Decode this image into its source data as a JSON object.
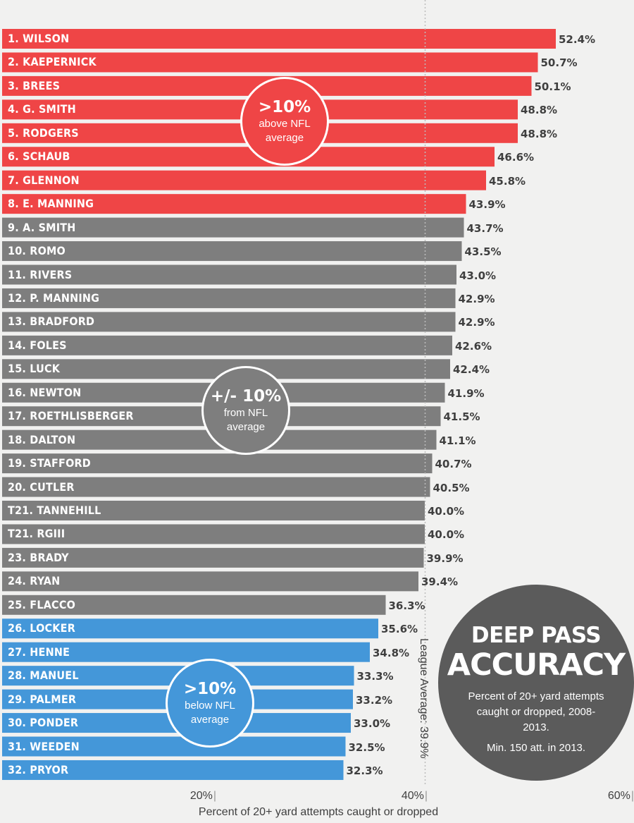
{
  "chart_data": {
    "type": "bar",
    "orientation": "horizontal",
    "categories": [
      "1. WILSON",
      "2. KAEPERNICK",
      "3. BREES",
      "4. G. SMITH",
      "5. RODGERS",
      "6. SCHAUB",
      "7. GLENNON",
      "8. E. MANNING",
      "9. A. SMITH",
      "10. ROMO",
      "11. RIVERS",
      "12. P. MANNING",
      "13. BRADFORD",
      "14. FOLES",
      "15. LUCK",
      "16. NEWTON",
      "17. ROETHLISBERGER",
      "18. DALTON",
      "19. STAFFORD",
      "20. CUTLER",
      "T21. TANNEHILL",
      "T21. RGIII",
      "23. BRADY",
      "24. RYAN",
      "25. FLACCO",
      "26. LOCKER",
      "27. HENNE",
      "28. MANUEL",
      "29. PALMER",
      "30. PONDER",
      "31. WEEDEN",
      "32. PRYOR"
    ],
    "values": [
      52.4,
      50.7,
      50.1,
      48.8,
      48.8,
      46.6,
      45.8,
      43.9,
      43.7,
      43.5,
      43.0,
      42.9,
      42.9,
      42.6,
      42.4,
      41.9,
      41.5,
      41.1,
      40.7,
      40.5,
      40.0,
      40.0,
      39.9,
      39.4,
      36.3,
      35.6,
      34.8,
      33.3,
      33.2,
      33.0,
      32.5,
      32.3
    ],
    "value_labels": [
      "52.4%",
      "50.7%",
      "50.1%",
      "48.8%",
      "48.8%",
      "46.6%",
      "45.8%",
      "43.9%",
      "43.7%",
      "43.5%",
      "43.0%",
      "42.9%",
      "42.9%",
      "42.6%",
      "42.4%",
      "41.9%",
      "41.5%",
      "41.1%",
      "40.7%",
      "40.5%",
      "40.0%",
      "40.0%",
      "39.9%",
      "39.4%",
      "36.3%",
      "35.6%",
      "34.8%",
      "33.3%",
      "33.2%",
      "33.0%",
      "32.5%",
      "32.3%"
    ],
    "groups": [
      "above",
      "above",
      "above",
      "above",
      "above",
      "above",
      "above",
      "above",
      "avg",
      "avg",
      "avg",
      "avg",
      "avg",
      "avg",
      "avg",
      "avg",
      "avg",
      "avg",
      "avg",
      "avg",
      "avg",
      "avg",
      "avg",
      "avg",
      "avg",
      "below",
      "below",
      "below",
      "below",
      "below",
      "below",
      "below"
    ],
    "group_colors": {
      "above": "#ef4546",
      "avg": "#7e7e7e",
      "below": "#4497d9"
    },
    "xlabel": "Percent of 20+ yard attempts caught or dropped",
    "ylabel": "",
    "xlim": [
      0,
      60
    ],
    "ticks": [
      "20%",
      "40%",
      "60%"
    ],
    "tick_values": [
      20,
      40,
      60
    ],
    "reference_line": {
      "value": 39.9,
      "label": "League Average: 39.9%"
    },
    "grid": false
  },
  "badges": {
    "above": {
      "big": ">10%",
      "line1": "above NFL",
      "line2": "average"
    },
    "avg": {
      "big": "+/- 10%",
      "line1": "from NFL",
      "line2": "average"
    },
    "below": {
      "big": ">10%",
      "line1": "below NFL",
      "line2": "average"
    }
  },
  "title": {
    "line1": "DEEP PASS",
    "line2": "ACCURACY",
    "subtitle": "Percent of 20+ yard attempts caught or dropped, 2008-2013.",
    "note": "Min. 150 att. in 2013."
  }
}
